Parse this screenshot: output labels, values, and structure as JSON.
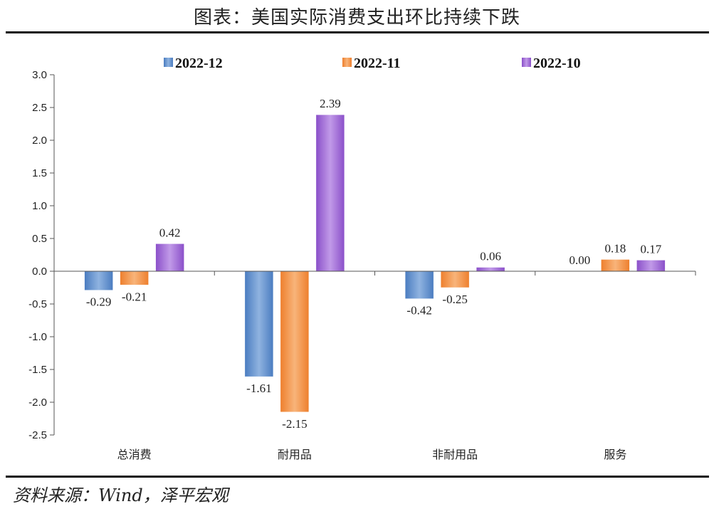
{
  "title": "图表：美国实际消费支出环比持续下跌",
  "source": "资料来源：Wind，泽平宏观",
  "chart_data": {
    "type": "bar",
    "categories": [
      "总消费",
      "耐用品",
      "非耐用品",
      "服务"
    ],
    "series": [
      {
        "name": "2022-12",
        "values": [
          -0.29,
          -1.61,
          -0.42,
          0.0
        ],
        "labels": [
          "-0.29",
          "-1.61",
          "-0.42",
          "0.00"
        ],
        "color": "#4a7cc0",
        "color_light": "#8fb3e0"
      },
      {
        "name": "2022-11",
        "values": [
          -0.21,
          -2.15,
          -0.25,
          0.18
        ],
        "labels": [
          "-0.21",
          "-2.15",
          "-0.25",
          "0.18"
        ],
        "color": "#ee7f2d",
        "color_light": "#f8b47a"
      },
      {
        "name": "2022-10",
        "values": [
          0.42,
          2.39,
          0.06,
          0.17
        ],
        "labels": [
          "0.42",
          "2.39",
          "0.06",
          "0.17"
        ],
        "color": "#8a4fc9",
        "color_light": "#c19ae8"
      }
    ],
    "ylim": [
      -2.5,
      3.0
    ],
    "yticks": [
      "3.0",
      "2.5",
      "2.0",
      "1.5",
      "1.0",
      "0.5",
      "0.0",
      "-0.5",
      "-1.0",
      "-1.5",
      "-2.0",
      "-2.5"
    ],
    "ytick_values": [
      3.0,
      2.5,
      2.0,
      1.5,
      1.0,
      0.5,
      0.0,
      -0.5,
      -1.0,
      -1.5,
      -2.0,
      -2.5
    ],
    "legend_position": "top-center",
    "grid": false
  }
}
